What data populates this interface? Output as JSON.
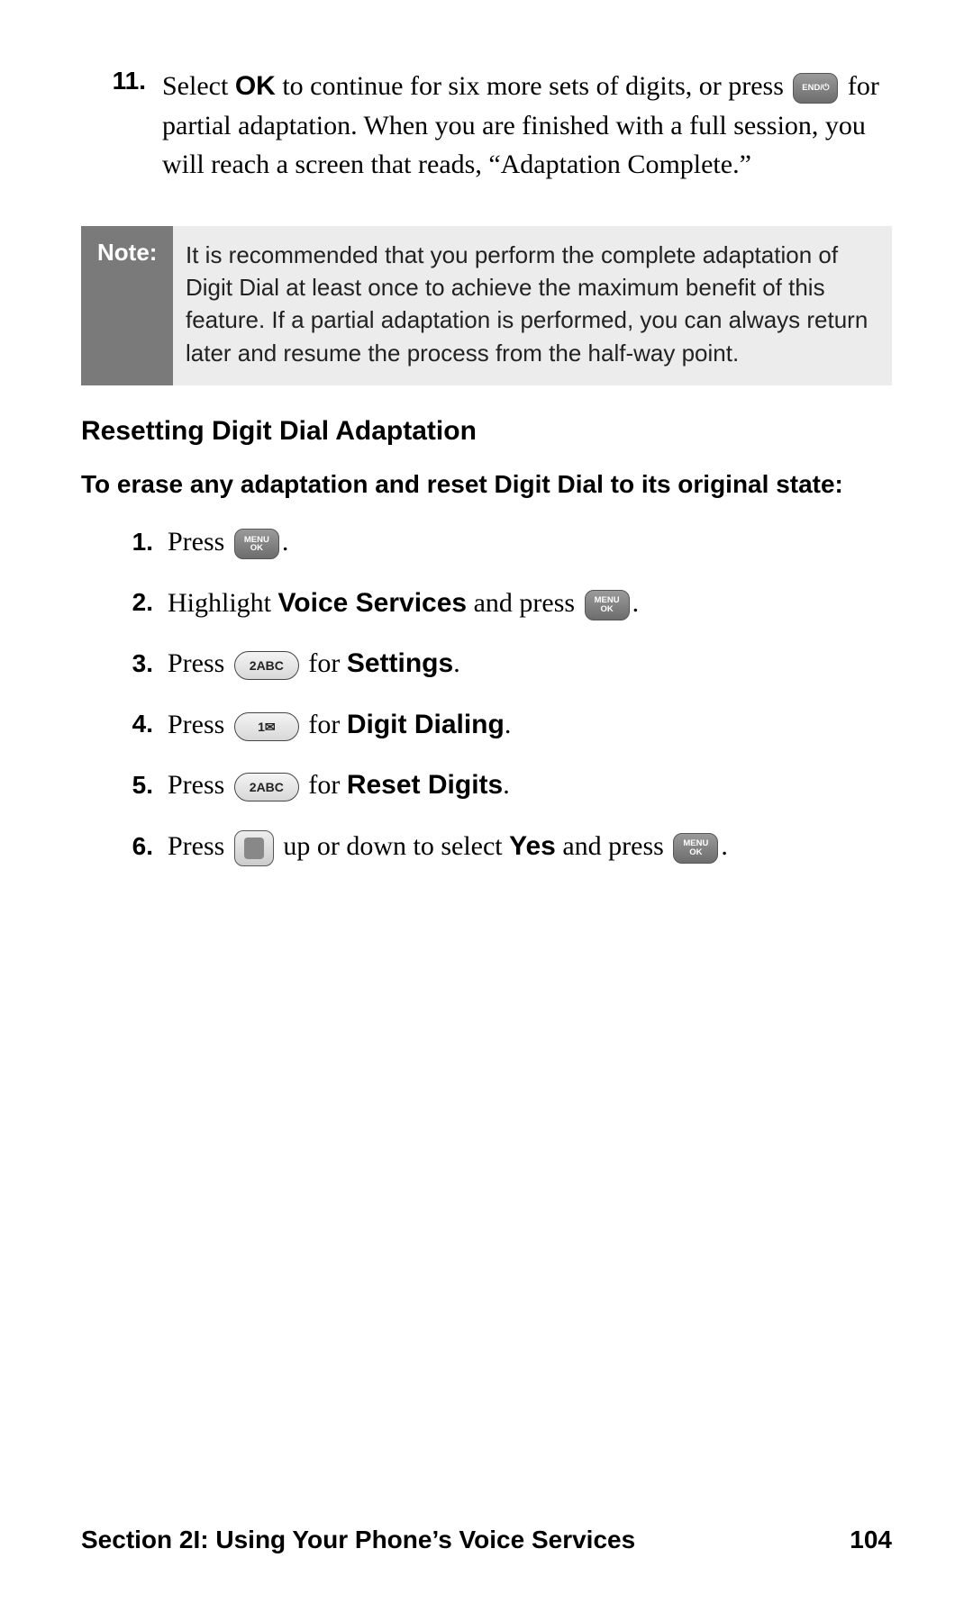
{
  "step11": {
    "num": "11.",
    "pre": "Select ",
    "ok": "OK",
    "mid": " to continue for six more sets of digits, or press ",
    "end_key": "END/",
    "post": " for partial adaptation. When you are finished with a full session, you will reach a screen that reads, “Adaptation Complete.”"
  },
  "note": {
    "label": "Note:",
    "body": "It is recommended that you perform the complete adaptation of Digit Dial at least once to achieve the maximum benefit of this feature. If a partial adaptation is performed, you can always return later and resume the process from the half-way point."
  },
  "heading": "Resetting Digit Dial Adaptation",
  "subheading": "To erase any adaptation and reset Digit Dial to its original state:",
  "keys": {
    "menu_ok_line1": "MENU",
    "menu_ok_line2": "OK",
    "two_abc": "2ABC",
    "one_mail": "1✉",
    "end_symbol": "⏻"
  },
  "steps": [
    {
      "num": "1.",
      "pre": "Press ",
      "after_key": "."
    },
    {
      "num": "2.",
      "pre": "Highlight ",
      "bold1": "Voice Services",
      "mid": " and press ",
      "after_key": "."
    },
    {
      "num": "3.",
      "pre": "Press ",
      "mid": " for ",
      "bold1": "Settings",
      "after": "."
    },
    {
      "num": "4.",
      "pre": "Press ",
      "mid": " for ",
      "bold1": "Digit Dialing",
      "after": "."
    },
    {
      "num": "5.",
      "pre": "Press ",
      "mid": " for ",
      "bold1": "Reset Digits",
      "after": "."
    },
    {
      "num": "6.",
      "pre": "Press ",
      "mid": " up or down to select ",
      "bold1": "Yes",
      "mid2": " and press ",
      "after_key": "."
    }
  ],
  "footer": {
    "section": "Section 2I: Using Your Phone’s Voice Services",
    "page": "104"
  },
  "colors": {
    "note_bg": "#ececec",
    "note_label_bg": "#7a7a7a",
    "text": "#000000"
  }
}
